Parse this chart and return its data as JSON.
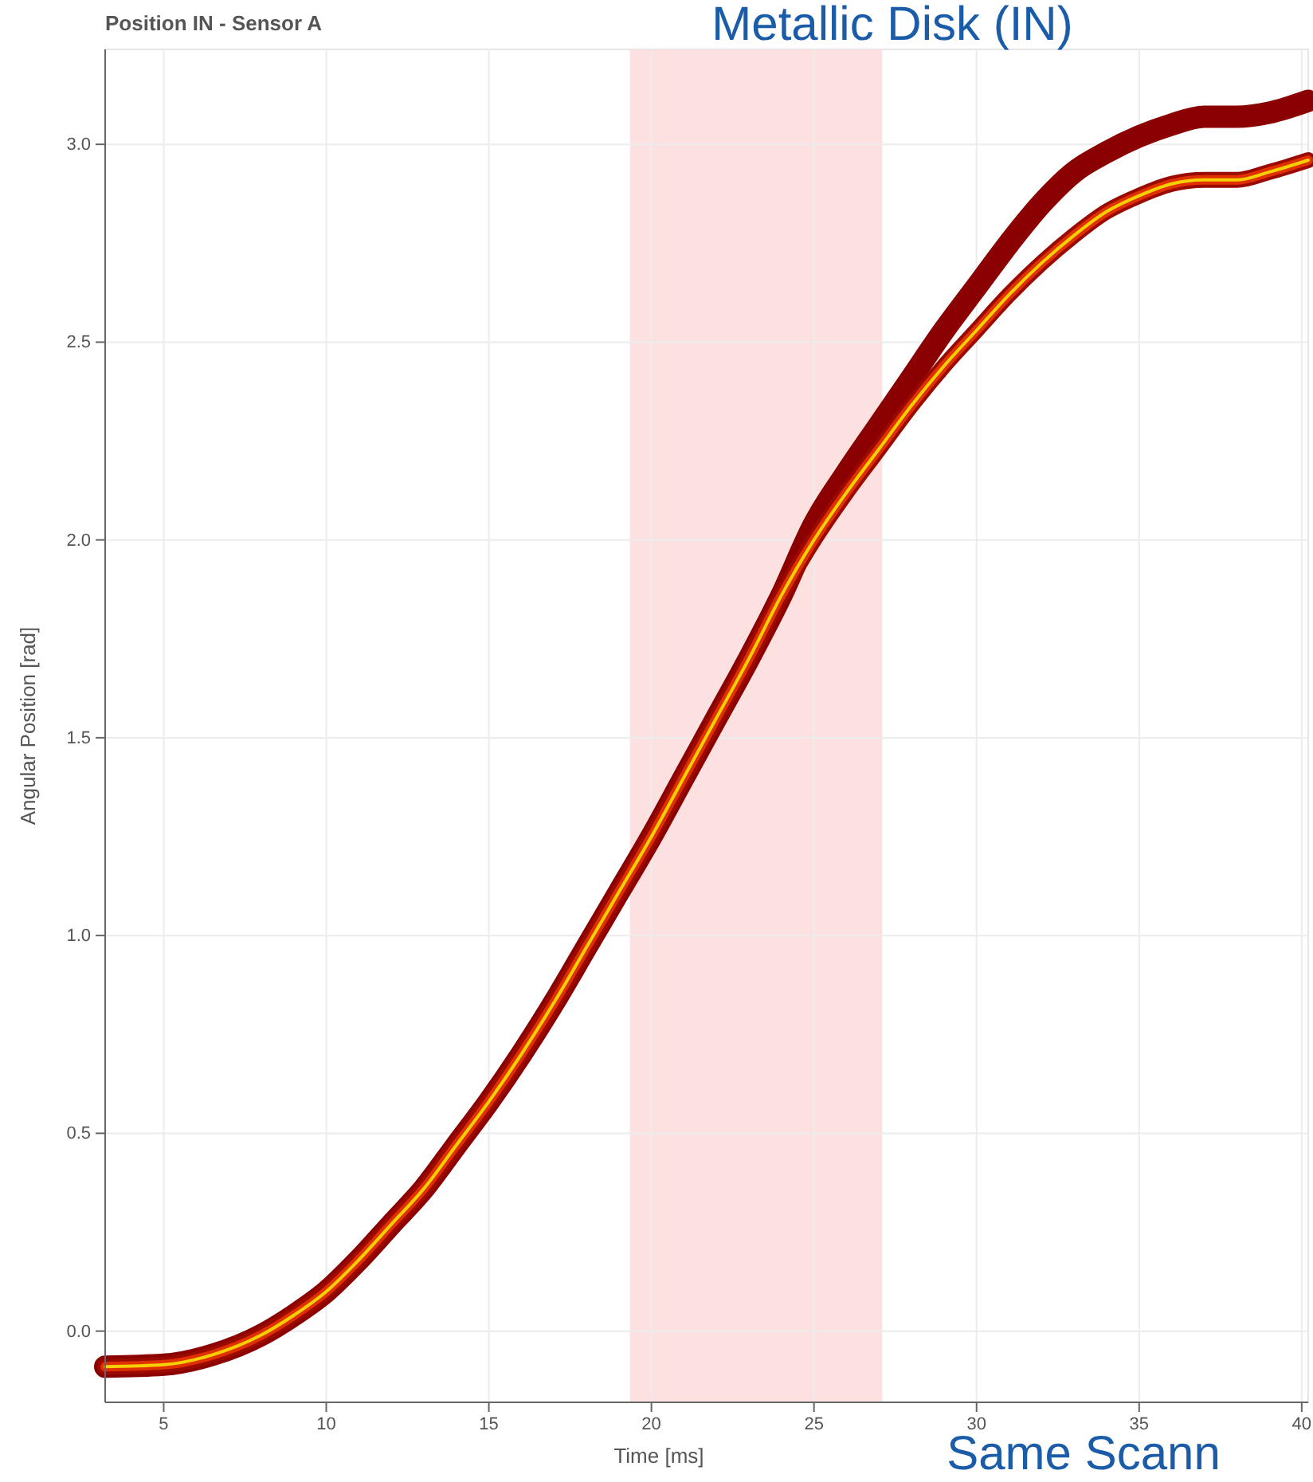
{
  "chart_data": {
    "type": "line",
    "title": "Position IN - Sensor A",
    "xlabel": "Time [ms]",
    "ylabel": "Angular Position [rad]",
    "annotations": [
      "Metallic Disk (IN)",
      "Same Scann"
    ],
    "xlim": [
      3.2,
      40.2
    ],
    "ylim": [
      -0.18,
      3.24
    ],
    "xticks": [
      5,
      10,
      15,
      20,
      25,
      30,
      35,
      40
    ],
    "yticks": [
      {
        "value": 0,
        "label": "0.0"
      },
      {
        "value": 0.5,
        "label": "0.5"
      },
      {
        "value": 1,
        "label": "1.0"
      },
      {
        "value": 1.5,
        "label": "1.5"
      },
      {
        "value": 2,
        "label": "2.0"
      },
      {
        "value": 2.5,
        "label": "2.5"
      },
      {
        "value": 3,
        "label": "3.0"
      }
    ],
    "grid": true,
    "line_style": "solid",
    "bands": [
      {
        "axis": "x",
        "from": 19.34,
        "to": 27.1,
        "color": "#fde0e0"
      }
    ],
    "x": [
      3.2,
      5,
      6.5,
      8,
      9,
      10,
      11,
      12,
      13,
      14,
      15,
      16,
      17,
      18,
      19,
      20,
      21,
      22,
      23,
      24,
      25,
      26,
      27,
      28,
      29,
      30,
      31,
      32,
      33,
      34,
      35,
      36,
      37,
      38,
      39,
      40.2
    ],
    "series": [
      {
        "color": "#8b0000",
        "values": [
          -0.09,
          -0.085,
          -0.06,
          -0.01,
          0.04,
          0.1,
          0.18,
          0.27,
          0.36,
          0.47,
          0.58,
          0.7,
          0.83,
          0.97,
          1.11,
          1.25,
          1.4,
          1.55,
          1.7,
          1.86,
          2.04,
          2.17,
          2.29,
          2.41,
          2.53,
          2.64,
          2.75,
          2.85,
          2.93,
          2.98,
          3.02,
          3.05,
          3.07,
          3.07,
          3.08,
          3.11
        ]
      },
      {
        "color": "#9a0a00",
        "values": [
          -0.09,
          -0.085,
          -0.06,
          -0.01,
          0.04,
          0.1,
          0.18,
          0.27,
          0.36,
          0.47,
          0.58,
          0.7,
          0.83,
          0.97,
          1.11,
          1.25,
          1.4,
          1.55,
          1.7,
          1.86,
          2.0,
          2.12,
          2.23,
          2.34,
          2.44,
          2.53,
          2.62,
          2.7,
          2.77,
          2.83,
          2.87,
          2.9,
          2.91,
          2.91,
          2.93,
          2.96
        ]
      },
      {
        "color": "#e03000",
        "values": [
          -0.09,
          -0.085,
          -0.06,
          -0.01,
          0.04,
          0.1,
          0.18,
          0.27,
          0.36,
          0.47,
          0.58,
          0.7,
          0.83,
          0.97,
          1.11,
          1.25,
          1.4,
          1.55,
          1.7,
          1.86,
          2.0,
          2.12,
          2.23,
          2.34,
          2.44,
          2.53,
          2.62,
          2.7,
          2.77,
          2.83,
          2.87,
          2.9,
          2.91,
          2.91,
          2.93,
          2.96
        ]
      },
      {
        "color": "#f5d000",
        "values": [
          -0.09,
          -0.085,
          -0.06,
          -0.01,
          0.04,
          0.1,
          0.18,
          0.27,
          0.36,
          0.47,
          0.58,
          0.7,
          0.83,
          0.97,
          1.11,
          1.25,
          1.4,
          1.55,
          1.7,
          1.86,
          2.0,
          2.12,
          2.23,
          2.34,
          2.44,
          2.53,
          2.62,
          2.7,
          2.77,
          2.83,
          2.87,
          2.9,
          2.91,
          2.91,
          2.93,
          2.96
        ]
      }
    ]
  }
}
